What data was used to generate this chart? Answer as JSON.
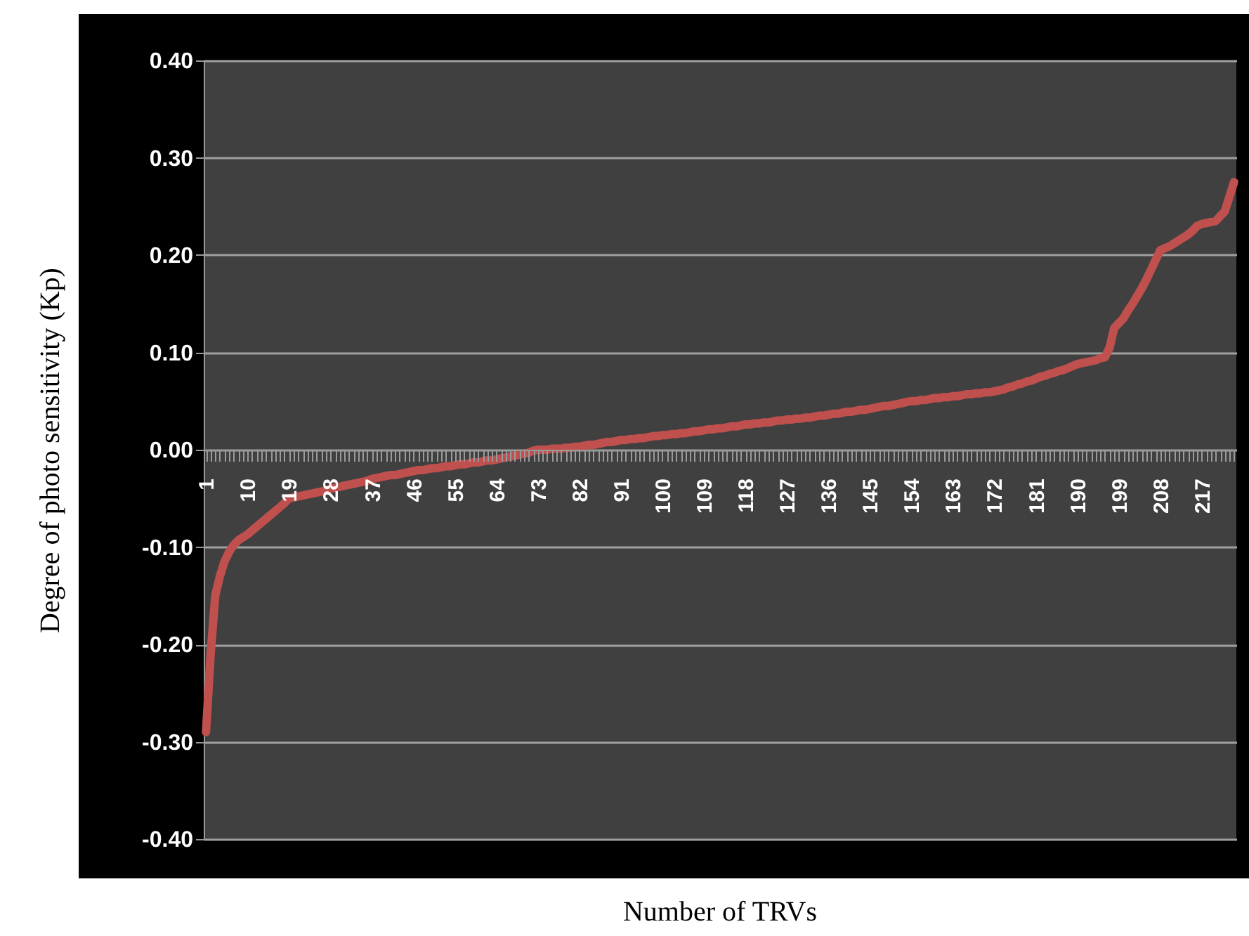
{
  "chart_data": {
    "type": "line",
    "xlabel": "Number of TRVs",
    "ylabel": "Degree of photo sensitivity (Kp)",
    "categories": [
      "1",
      null,
      null,
      null,
      null,
      null,
      null,
      null,
      null,
      "10",
      null,
      null,
      null,
      null,
      null,
      null,
      null,
      null,
      "19",
      null,
      null,
      null,
      null,
      null,
      null,
      null,
      null,
      "28",
      null,
      null,
      null,
      null,
      null,
      null,
      null,
      null,
      "37",
      null,
      null,
      null,
      null,
      null,
      null,
      null,
      null,
      "46",
      null,
      null,
      null,
      null,
      null,
      null,
      null,
      null,
      "55",
      null,
      null,
      null,
      null,
      null,
      null,
      null,
      null,
      "64",
      null,
      null,
      null,
      null,
      null,
      null,
      null,
      null,
      "73",
      null,
      null,
      null,
      null,
      null,
      null,
      null,
      null,
      "82",
      null,
      null,
      null,
      null,
      null,
      null,
      null,
      null,
      "91",
      null,
      null,
      null,
      null,
      null,
      null,
      null,
      null,
      "100",
      null,
      null,
      null,
      null,
      null,
      null,
      null,
      null,
      "109",
      null,
      null,
      null,
      null,
      null,
      null,
      null,
      null,
      "118",
      null,
      null,
      null,
      null,
      null,
      null,
      null,
      null,
      "127",
      null,
      null,
      null,
      null,
      null,
      null,
      null,
      null,
      "136",
      null,
      null,
      null,
      null,
      null,
      null,
      null,
      null,
      "145",
      null,
      null,
      null,
      null,
      null,
      null,
      null,
      null,
      "154",
      null,
      null,
      null,
      null,
      null,
      null,
      null,
      null,
      "163",
      null,
      null,
      null,
      null,
      null,
      null,
      null,
      null,
      "172",
      null,
      null,
      null,
      null,
      null,
      null,
      null,
      null,
      "181",
      null,
      null,
      null,
      null,
      null,
      null,
      null,
      null,
      "190",
      null,
      null,
      null,
      null,
      null,
      null,
      null,
      null,
      "199",
      null,
      null,
      null,
      null,
      null,
      null,
      null,
      null,
      "208",
      null,
      null,
      null,
      null,
      null,
      null,
      null,
      null,
      "217",
      null,
      null,
      null,
      null,
      null,
      null,
      null
    ],
    "series": [
      {
        "color": "#c0504d",
        "values": [
          -0.29,
          -0.21,
          -0.15,
          -0.13,
          -0.115,
          -0.105,
          -0.098,
          -0.093,
          -0.09,
          -0.087,
          -0.083,
          -0.079,
          -0.075,
          -0.071,
          -0.067,
          -0.063,
          -0.059,
          -0.055,
          -0.05,
          -0.049,
          -0.048,
          -0.047,
          -0.046,
          -0.045,
          -0.044,
          -0.043,
          -0.042,
          -0.04,
          -0.039,
          -0.038,
          -0.037,
          -0.036,
          -0.035,
          -0.034,
          -0.033,
          -0.032,
          -0.03,
          -0.029,
          -0.028,
          -0.027,
          -0.026,
          -0.026,
          -0.025,
          -0.024,
          -0.023,
          -0.022,
          -0.021,
          -0.021,
          -0.02,
          -0.019,
          -0.019,
          -0.018,
          -0.017,
          -0.017,
          -0.016,
          -0.015,
          -0.015,
          -0.014,
          -0.013,
          -0.013,
          -0.012,
          -0.011,
          -0.011,
          -0.01,
          -0.009,
          -0.008,
          -0.007,
          -0.006,
          -0.005,
          -0.004,
          -0.003,
          -0.001,
          0,
          0,
          0,
          0.001,
          0.001,
          0.001,
          0.002,
          0.002,
          0.003,
          0.003,
          0.004,
          0.005,
          0.005,
          0.006,
          0.007,
          0.008,
          0.008,
          0.009,
          0.01,
          0.01,
          0.011,
          0.011,
          0.012,
          0.012,
          0.013,
          0.014,
          0.014,
          0.015,
          0.015,
          0.016,
          0.016,
          0.017,
          0.017,
          0.018,
          0.019,
          0.019,
          0.02,
          0.021,
          0.021,
          0.022,
          0.022,
          0.023,
          0.024,
          0.024,
          0.025,
          0.026,
          0.026,
          0.027,
          0.027,
          0.028,
          0.028,
          0.029,
          0.03,
          0.03,
          0.031,
          0.031,
          0.032,
          0.032,
          0.033,
          0.033,
          0.034,
          0.035,
          0.035,
          0.036,
          0.037,
          0.037,
          0.038,
          0.039,
          0.039,
          0.04,
          0.041,
          0.041,
          0.042,
          0.043,
          0.044,
          0.045,
          0.045,
          0.046,
          0.047,
          0.048,
          0.049,
          0.05,
          0.05,
          0.051,
          0.051,
          0.052,
          0.053,
          0.053,
          0.054,
          0.054,
          0.055,
          0.055,
          0.056,
          0.057,
          0.057,
          0.058,
          0.058,
          0.059,
          0.059,
          0.06,
          0.061,
          0.062,
          0.064,
          0.065,
          0.067,
          0.068,
          0.07,
          0.071,
          0.073,
          0.075,
          0.076,
          0.078,
          0.079,
          0.081,
          0.082,
          0.084,
          0.086,
          0.088,
          0.089,
          0.09,
          0.091,
          0.092,
          0.094,
          0.095,
          0.105,
          0.125,
          0.13,
          0.135,
          0.143,
          0.15,
          0.158,
          0.166,
          0.175,
          0.185,
          0.195,
          0.205,
          0.207,
          0.209,
          0.212,
          0.215,
          0.218,
          0.221,
          0.225,
          0.23,
          0.232,
          0.233,
          0.234,
          0.235,
          0.24,
          0.245,
          0.26,
          0.275
        ]
      }
    ],
    "ylim": [
      -0.4,
      0.4
    ],
    "yticks": [
      {
        "value": -0.4,
        "label": "-0.40"
      },
      {
        "value": -0.3,
        "label": "-0.30"
      },
      {
        "value": -0.2,
        "label": "-0.20"
      },
      {
        "value": -0.1,
        "label": "-0.10"
      },
      {
        "value": 0,
        "label": "0.00"
      },
      {
        "value": 0.1,
        "label": "0.10"
      },
      {
        "value": 0.2,
        "label": "0.20"
      },
      {
        "value": 0.3,
        "label": "0.30"
      },
      {
        "value": 0.4,
        "label": "0.40"
      }
    ],
    "grid": "y",
    "marker": "none",
    "line_style": "solid"
  }
}
